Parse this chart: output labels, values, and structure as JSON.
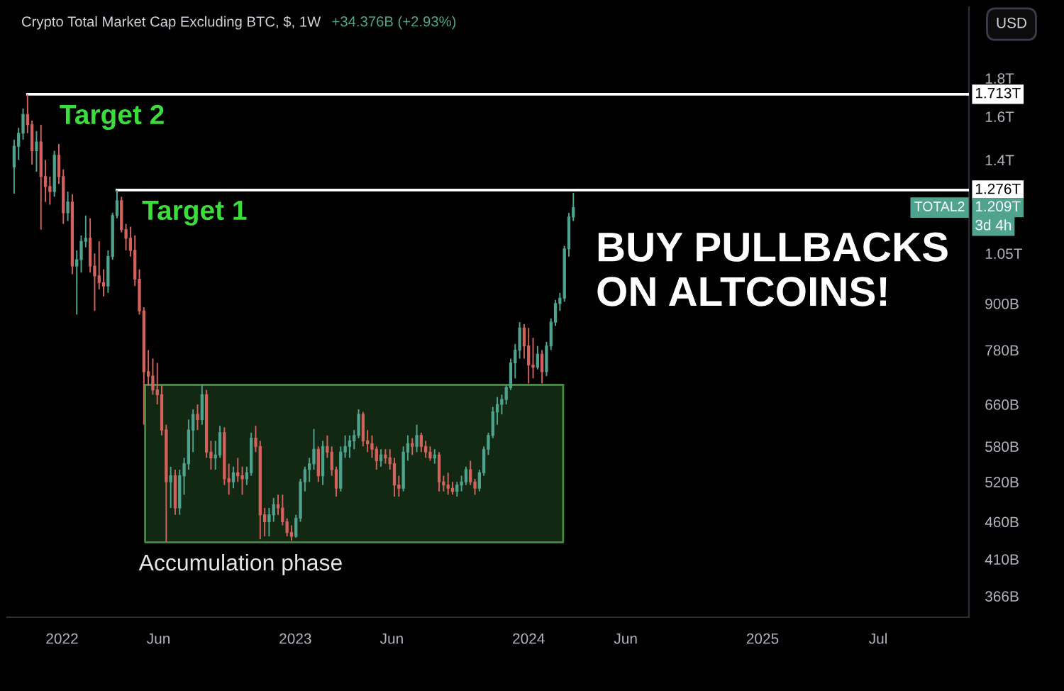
{
  "chart_data": {
    "type": "candlestick",
    "title": "Crypto Total Market Cap Excluding BTC, $, 1W",
    "subtitle": "+34.376B (+2.93%)",
    "log": true,
    "xlim": [
      "2021-10-07",
      "2025-11-20"
    ],
    "xticks": [
      {
        "value": "2022-01-01",
        "label": "2022"
      },
      {
        "value": "2022-06-01",
        "label": "Jun"
      },
      {
        "value": "2023-01-01",
        "label": "2023"
      },
      {
        "value": "2023-06-01",
        "label": "Jun"
      },
      {
        "value": "2024-01-01",
        "label": "2024"
      },
      {
        "value": "2024-06-01",
        "label": "Jun"
      },
      {
        "value": "2025-01-01",
        "label": "2025"
      },
      {
        "value": "2025-07-01",
        "label": "Jul"
      }
    ],
    "ylim": [
      343000000000.0,
      2240000000000.0
    ],
    "yticks": [
      {
        "value": 366000000000.0,
        "label": "366B"
      },
      {
        "value": 410000000000.0,
        "label": "410B"
      },
      {
        "value": 460000000000.0,
        "label": "460B"
      },
      {
        "value": 520000000000.0,
        "label": "520B"
      },
      {
        "value": 580000000000.0,
        "label": "580B"
      },
      {
        "value": 660000000000.0,
        "label": "660B"
      },
      {
        "value": 780000000000.0,
        "label": "780B"
      },
      {
        "value": 900000000000.0,
        "label": "900B"
      },
      {
        "value": 1050000000000.0,
        "label": "1.05T"
      },
      {
        "value": 1400000000000.0,
        "label": "1.4T"
      },
      {
        "value": 1600000000000.0,
        "label": "1.6T"
      },
      {
        "value": 1800000000000.0,
        "label": "1.8T"
      }
    ],
    "series": [
      {
        "type": "line",
        "x": [
          "2022-05-11",
          "2024-02-24"
        ],
        "values": [
          701000000000.0,
          701000000000.0
        ],
        "lower": [
          432000000000.0,
          432000000000.0
        ],
        "upper": [
          701000000000.0,
          701000000000.0
        ],
        "color": "#3f8f3f"
      },
      {
        "type": "line",
        "x": [
          "2021-11-08",
          "2025-11-20"
        ],
        "values": [
          1713000000000.0,
          1713000000000.0
        ],
        "color": "#ffffff",
        "value_labels": [
          null,
          "1.713T"
        ]
      },
      {
        "type": "line",
        "x": [
          "2022-03-28",
          "2025-11-20"
        ],
        "values": [
          1276000000000.0,
          1276000000000.0
        ],
        "color": "#ffffff",
        "value_labels": [
          null,
          "1.276T"
        ]
      },
      {
        "name": "TOTAL2",
        "x": [
          "2021-10-18",
          "2021-10-25",
          "2021-11-01",
          "2021-11-08",
          "2021-11-15",
          "2021-11-22",
          "2021-11-29",
          "2021-12-06",
          "2021-12-13",
          "2021-12-20",
          "2021-12-27",
          "2022-01-03",
          "2022-01-10",
          "2022-01-17",
          "2022-01-24",
          "2022-01-31",
          "2022-02-07",
          "2022-02-14",
          "2022-02-21",
          "2022-02-28",
          "2022-03-07",
          "2022-03-14",
          "2022-03-21",
          "2022-03-28",
          "2022-04-04",
          "2022-04-11",
          "2022-04-18",
          "2022-04-25",
          "2022-05-02",
          "2022-05-09",
          "2022-05-16",
          "2022-05-23",
          "2022-05-30",
          "2022-06-06",
          "2022-06-13",
          "2022-06-20",
          "2022-06-27",
          "2022-07-04",
          "2022-07-11",
          "2022-07-18",
          "2022-07-25",
          "2022-08-01",
          "2022-08-08",
          "2022-08-15",
          "2022-08-22",
          "2022-08-29",
          "2022-09-05",
          "2022-09-12",
          "2022-09-19",
          "2022-09-26",
          "2022-10-03",
          "2022-10-10",
          "2022-10-17",
          "2022-10-24",
          "2022-10-31",
          "2022-11-07",
          "2022-11-14",
          "2022-11-21",
          "2022-11-28",
          "2022-12-05",
          "2022-12-12",
          "2022-12-19",
          "2022-12-26",
          "2023-01-02",
          "2023-01-09",
          "2023-01-16",
          "2023-01-23",
          "2023-01-30",
          "2023-02-06",
          "2023-02-13",
          "2023-02-20",
          "2023-02-27",
          "2023-03-06",
          "2023-03-13",
          "2023-03-20",
          "2023-03-27",
          "2023-04-03",
          "2023-04-10",
          "2023-04-17",
          "2023-04-24",
          "2023-05-01",
          "2023-05-08",
          "2023-05-15",
          "2023-05-22",
          "2023-05-29",
          "2023-06-05",
          "2023-06-12",
          "2023-06-19",
          "2023-06-26",
          "2023-07-03",
          "2023-07-10",
          "2023-07-17",
          "2023-07-24",
          "2023-07-31",
          "2023-08-07",
          "2023-08-14",
          "2023-08-21",
          "2023-08-28",
          "2023-09-04",
          "2023-09-11",
          "2023-09-18",
          "2023-09-25",
          "2023-10-02",
          "2023-10-09",
          "2023-10-16",
          "2023-10-23",
          "2023-10-30",
          "2023-11-06",
          "2023-11-13",
          "2023-11-20",
          "2023-11-27",
          "2023-12-04",
          "2023-12-11",
          "2023-12-18",
          "2023-12-25",
          "2024-01-01",
          "2024-01-08",
          "2024-01-15",
          "2024-01-22",
          "2024-01-29",
          "2024-02-05",
          "2024-02-12",
          "2024-02-19",
          "2024-02-26",
          "2024-03-04",
          "2024-03-11"
        ],
        "ohlc": [
          [
            1370000000000.0,
            1490000000000.0,
            1262000000000.0,
            1460000000000.0
          ],
          [
            1460000000000.0,
            1545000000000.0,
            1400000000000.0,
            1520000000000.0
          ],
          [
            1520000000000.0,
            1640000000000.0,
            1490000000000.0,
            1610000000000.0
          ],
          [
            1610000000000.0,
            1713000000000.0,
            1520000000000.0,
            1560000000000.0
          ],
          [
            1560000000000.0,
            1580000000000.0,
            1380000000000.0,
            1440000000000.0
          ],
          [
            1440000000000.0,
            1530000000000.0,
            1350000000000.0,
            1480000000000.0
          ],
          [
            1480000000000.0,
            1560000000000.0,
            1130000000000.0,
            1330000000000.0
          ],
          [
            1330000000000.0,
            1400000000000.0,
            1230000000000.0,
            1290000000000.0
          ],
          [
            1290000000000.0,
            1330000000000.0,
            1220000000000.0,
            1270000000000.0
          ],
          [
            1270000000000.0,
            1440000000000.0,
            1250000000000.0,
            1420000000000.0
          ],
          [
            1420000000000.0,
            1470000000000.0,
            1300000000000.0,
            1330000000000.0
          ],
          [
            1330000000000.0,
            1360000000000.0,
            1150000000000.0,
            1190000000000.0
          ],
          [
            1190000000000.0,
            1270000000000.0,
            1160000000000.0,
            1230000000000.0
          ],
          [
            1230000000000.0,
            1260000000000.0,
            985000000000.0,
            1010000000000.0
          ],
          [
            1010000000000.0,
            1060000000000.0,
            870000000000.0,
            1030000000000.0
          ],
          [
            1030000000000.0,
            1110000000000.0,
            990000000000.0,
            1090000000000.0
          ],
          [
            1090000000000.0,
            1180000000000.0,
            1070000000000.0,
            1100000000000.0
          ],
          [
            1100000000000.0,
            1170000000000.0,
            990000000000.0,
            1010000000000.0
          ],
          [
            1010000000000.0,
            1050000000000.0,
            880000000000.0,
            980000000000.0
          ],
          [
            980000000000.0,
            1090000000000.0,
            940000000000.0,
            960000000000.0
          ],
          [
            960000000000.0,
            1000000000000.0,
            920000000000.0,
            950000000000.0
          ],
          [
            950000000000.0,
            1060000000000.0,
            930000000000.0,
            1040000000000.0
          ],
          [
            1040000000000.0,
            1190000000000.0,
            1030000000000.0,
            1180000000000.0
          ],
          [
            1180000000000.0,
            1276000000000.0,
            1170000000000.0,
            1235000000000.0
          ],
          [
            1235000000000.0,
            1250000000000.0,
            1120000000000.0,
            1130000000000.0
          ],
          [
            1130000000000.0,
            1150000000000.0,
            1060000000000.0,
            1100000000000.0
          ],
          [
            1100000000000.0,
            1140000000000.0,
            1040000000000.0,
            1060000000000.0
          ],
          [
            1060000000000.0,
            1110000000000.0,
            950000000000.0,
            970000000000.0
          ],
          [
            970000000000.0,
            1000000000000.0,
            870000000000.0,
            880000000000.0
          ],
          [
            880000000000.0,
            890000000000.0,
            620000000000.0,
            730000000000.0
          ],
          [
            730000000000.0,
            780000000000.0,
            700000000000.0,
            720000000000.0
          ],
          [
            720000000000.0,
            760000000000.0,
            680000000000.0,
            690000000000.0
          ],
          [
            690000000000.0,
            750000000000.0,
            660000000000.0,
            680000000000.0
          ],
          [
            680000000000.0,
            700000000000.0,
            600000000000.0,
            610000000000.0
          ],
          [
            610000000000.0,
            620000000000.0,
            432000000000.0,
            520000000000.0
          ],
          [
            520000000000.0,
            545000000000.0,
            480000000000.0,
            530000000000.0
          ],
          [
            530000000000.0,
            540000000000.0,
            470000000000.0,
            480000000000.0
          ],
          [
            480000000000.0,
            540000000000.0,
            470000000000.0,
            530000000000.0
          ],
          [
            530000000000.0,
            560000000000.0,
            500000000000.0,
            550000000000.0
          ],
          [
            550000000000.0,
            630000000000.0,
            540000000000.0,
            610000000000.0
          ],
          [
            610000000000.0,
            650000000000.0,
            570000000000.0,
            640000000000.0
          ],
          [
            640000000000.0,
            660000000000.0,
            610000000000.0,
            630000000000.0
          ],
          [
            630000000000.0,
            701000000000.0,
            620000000000.0,
            680000000000.0
          ],
          [
            680000000000.0,
            690000000000.0,
            560000000000.0,
            570000000000.0
          ],
          [
            570000000000.0,
            590000000000.0,
            540000000000.0,
            560000000000.0
          ],
          [
            560000000000.0,
            590000000000.0,
            540000000000.0,
            565000000000.0
          ],
          [
            565000000000.0,
            618000000000.0,
            560000000000.0,
            605000000000.0
          ],
          [
            605000000000.0,
            615000000000.0,
            515000000000.0,
            525000000000.0
          ],
          [
            525000000000.0,
            550000000000.0,
            500000000000.0,
            520000000000.0
          ],
          [
            520000000000.0,
            545000000000.0,
            510000000000.0,
            535000000000.0
          ],
          [
            535000000000.0,
            560000000000.0,
            520000000000.0,
            530000000000.0
          ],
          [
            530000000000.0,
            545000000000.0,
            500000000000.0,
            525000000000.0
          ],
          [
            525000000000.0,
            545000000000.0,
            515000000000.0,
            535000000000.0
          ],
          [
            535000000000.0,
            605000000000.0,
            530000000000.0,
            595000000000.0
          ],
          [
            595000000000.0,
            618000000000.0,
            570000000000.0,
            580000000000.0
          ],
          [
            580000000000.0,
            590000000000.0,
            436000000000.0,
            470000000000.0
          ],
          [
            470000000000.0,
            480000000000.0,
            440000000000.0,
            460000000000.0
          ],
          [
            460000000000.0,
            480000000000.0,
            440000000000.0,
            470000000000.0
          ],
          [
            470000000000.0,
            495000000000.0,
            460000000000.0,
            485000000000.0
          ],
          [
            485000000000.0,
            500000000000.0,
            470000000000.0,
            480000000000.0
          ],
          [
            480000000000.0,
            500000000000.0,
            455000000000.0,
            460000000000.0
          ],
          [
            460000000000.0,
            465000000000.0,
            440000000000.0,
            445000000000.0
          ],
          [
            445000000000.0,
            455000000000.0,
            434000000000.0,
            440000000000.0
          ],
          [
            440000000000.0,
            470000000000.0,
            438000000000.0,
            465000000000.0
          ],
          [
            465000000000.0,
            525000000000.0,
            460000000000.0,
            520000000000.0
          ],
          [
            520000000000.0,
            545000000000.0,
            505000000000.0,
            540000000000.0
          ],
          [
            540000000000.0,
            560000000000.0,
            520000000000.0,
            550000000000.0
          ],
          [
            550000000000.0,
            612000000000.0,
            540000000000.0,
            575000000000.0
          ],
          [
            575000000000.0,
            580000000000.0,
            520000000000.0,
            530000000000.0
          ],
          [
            530000000000.0,
            590000000000.0,
            515000000000.0,
            580000000000.0
          ],
          [
            580000000000.0,
            600000000000.0,
            560000000000.0,
            570000000000.0
          ],
          [
            570000000000.0,
            580000000000.0,
            530000000000.0,
            540000000000.0
          ],
          [
            540000000000.0,
            545000000000.0,
            497000000000.0,
            510000000000.0
          ],
          [
            510000000000.0,
            580000000000.0,
            505000000000.0,
            570000000000.0
          ],
          [
            570000000000.0,
            600000000000.0,
            560000000000.0,
            580000000000.0
          ],
          [
            580000000000.0,
            600000000000.0,
            560000000000.0,
            590000000000.0
          ],
          [
            590000000000.0,
            610000000000.0,
            575000000000.0,
            600000000000.0
          ],
          [
            600000000000.0,
            650000000000.0,
            595000000000.0,
            640000000000.0
          ],
          [
            640000000000.0,
            645000000000.0,
            580000000000.0,
            590000000000.0
          ],
          [
            590000000000.0,
            610000000000.0,
            570000000000.0,
            585000000000.0
          ],
          [
            585000000000.0,
            600000000000.0,
            560000000000.0,
            575000000000.0
          ],
          [
            575000000000.0,
            580000000000.0,
            540000000000.0,
            555000000000.0
          ],
          [
            555000000000.0,
            575000000000.0,
            545000000000.0,
            565000000000.0
          ],
          [
            565000000000.0,
            575000000000.0,
            550000000000.0,
            560000000000.0
          ],
          [
            560000000000.0,
            575000000000.0,
            540000000000.0,
            550000000000.0
          ],
          [
            550000000000.0,
            560000000000.0,
            497000000000.0,
            515000000000.0
          ],
          [
            515000000000.0,
            530000000000.0,
            497000000000.0,
            510000000000.0
          ],
          [
            510000000000.0,
            580000000000.0,
            505000000000.0,
            570000000000.0
          ],
          [
            570000000000.0,
            600000000000.0,
            555000000000.0,
            585000000000.0
          ],
          [
            585000000000.0,
            595000000000.0,
            565000000000.0,
            580000000000.0
          ],
          [
            580000000000.0,
            620000000000.0,
            570000000000.0,
            600000000000.0
          ],
          [
            600000000000.0,
            605000000000.0,
            570000000000.0,
            580000000000.0
          ],
          [
            580000000000.0,
            590000000000.0,
            560000000000.0,
            570000000000.0
          ],
          [
            570000000000.0,
            580000000000.0,
            555000000000.0,
            560000000000.0
          ],
          [
            560000000000.0,
            575000000000.0,
            550000000000.0,
            565000000000.0
          ],
          [
            565000000000.0,
            570000000000.0,
            505000000000.0,
            520000000000.0
          ],
          [
            520000000000.0,
            530000000000.0,
            505000000000.0,
            515000000000.0
          ],
          [
            515000000000.0,
            535000000000.0,
            500000000000.0,
            510000000000.0
          ],
          [
            510000000000.0,
            520000000000.0,
            500000000000.0,
            505000000000.0
          ],
          [
            505000000000.0,
            520000000000.0,
            497000000000.0,
            515000000000.0
          ],
          [
            515000000000.0,
            530000000000.0,
            505000000000.0,
            520000000000.0
          ],
          [
            520000000000.0,
            545000000000.0,
            515000000000.0,
            540000000000.0
          ],
          [
            540000000000.0,
            555000000000.0,
            515000000000.0,
            520000000000.0
          ],
          [
            520000000000.0,
            525000000000.0,
            500000000000.0,
            510000000000.0
          ],
          [
            510000000000.0,
            540000000000.0,
            505000000000.0,
            535000000000.0
          ],
          [
            535000000000.0,
            580000000000.0,
            530000000000.0,
            575000000000.0
          ],
          [
            575000000000.0,
            605000000000.0,
            565000000000.0,
            600000000000.0
          ],
          [
            600000000000.0,
            655000000000.0,
            595000000000.0,
            645000000000.0
          ],
          [
            645000000000.0,
            675000000000.0,
            620000000000.0,
            660000000000.0
          ],
          [
            660000000000.0,
            680000000000.0,
            640000000000.0,
            670000000000.0
          ],
          [
            670000000000.0,
            700000000000.0,
            660000000000.0,
            695000000000.0
          ],
          [
            695000000000.0,
            760000000000.0,
            690000000000.0,
            750000000000.0
          ],
          [
            750000000000.0,
            795000000000.0,
            715000000000.0,
            780000000000.0
          ],
          [
            780000000000.0,
            850000000000.0,
            760000000000.0,
            835000000000.0
          ],
          [
            835000000000.0,
            845000000000.0,
            760000000000.0,
            790000000000.0
          ],
          [
            790000000000.0,
            835000000000.0,
            704000000000.0,
            745000000000.0
          ],
          [
            745000000000.0,
            810000000000.0,
            715000000000.0,
            740000000000.0
          ],
          [
            740000000000.0,
            790000000000.0,
            735000000000.0,
            770000000000.0
          ],
          [
            770000000000.0,
            780000000000.0,
            704000000000.0,
            730000000000.0
          ],
          [
            730000000000.0,
            800000000000.0,
            720000000000.0,
            790000000000.0
          ],
          [
            790000000000.0,
            860000000000.0,
            780000000000.0,
            850000000000.0
          ],
          [
            850000000000.0,
            910000000000.0,
            840000000000.0,
            900000000000.0
          ],
          [
            900000000000.0,
            930000000000.0,
            880000000000.0,
            915000000000.0
          ],
          [
            915000000000.0,
            1075000000000.0,
            905000000000.0,
            1065000000000.0
          ],
          [
            1065000000000.0,
            1190000000000.0,
            1040000000000.0,
            1175000000000.0
          ],
          [
            1174624000000.0,
            1265000000000.0,
            1160000000000.0,
            1209000000000.0
          ]
        ],
        "colors": [
          "#4fa38f",
          "#4fa38f",
          "#4fa38f",
          "#d4625d",
          "#d4625d",
          "#4fa38f",
          "#d4625d",
          "#d4625d",
          "#d4625d",
          "#4fa38f",
          "#d4625d",
          "#d4625d",
          "#4fa38f",
          "#d4625d",
          "#4fa38f",
          "#4fa38f",
          "#4fa38f",
          "#d4625d",
          "#d4625d",
          "#d4625d",
          "#d4625d",
          "#4fa38f",
          "#4fa38f",
          "#4fa38f",
          "#d4625d",
          "#d4625d",
          "#d4625d",
          "#d4625d",
          "#d4625d",
          "#d4625d",
          "#d4625d",
          "#d4625d",
          "#d4625d",
          "#d4625d",
          "#d4625d",
          "#4fa38f",
          "#d4625d",
          "#4fa38f",
          "#4fa38f",
          "#4fa38f",
          "#4fa38f",
          "#d4625d",
          "#4fa38f",
          "#d4625d",
          "#d4625d",
          "#4fa38f",
          "#4fa38f",
          "#d4625d",
          "#d4625d",
          "#4fa38f",
          "#d4625d",
          "#d4625d",
          "#4fa38f",
          "#4fa38f",
          "#d4625d",
          "#d4625d",
          "#d4625d",
          "#4fa38f",
          "#4fa38f",
          "#d4625d",
          "#d4625d",
          "#d4625d",
          "#d4625d",
          "#4fa38f",
          "#4fa38f",
          "#4fa38f",
          "#4fa38f",
          "#4fa38f",
          "#d4625d",
          "#4fa38f",
          "#d4625d",
          "#d4625d",
          "#d4625d",
          "#4fa38f",
          "#4fa38f",
          "#4fa38f",
          "#4fa38f",
          "#4fa38f",
          "#d4625d",
          "#d4625d",
          "#d4625d",
          "#d4625d",
          "#4fa38f",
          "#d4625d",
          "#d4625d",
          "#d4625d",
          "#d4625d",
          "#4fa38f",
          "#4fa38f",
          "#d4625d",
          "#4fa38f",
          "#d4625d",
          "#d4625d",
          "#d4625d",
          "#4fa38f",
          "#d4625d",
          "#d4625d",
          "#d4625d",
          "#d4625d",
          "#4fa38f",
          "#4fa38f",
          "#4fa38f",
          "#d4625d",
          "#d4625d",
          "#4fa38f",
          "#4fa38f",
          "#4fa38f",
          "#4fa38f",
          "#4fa38f",
          "#4fa38f",
          "#4fa38f",
          "#4fa38f",
          "#4fa38f",
          "#4fa38f",
          "#d4625d",
          "#d4625d",
          "#d4625d",
          "#4fa38f",
          "#d4625d",
          "#4fa38f",
          "#4fa38f",
          "#4fa38f",
          "#4fa38f",
          "#4fa38f",
          "#4fa38f",
          "#4fa38f"
        ],
        "value_labels": [
          null,
          null,
          null,
          null,
          null,
          null,
          null,
          null,
          null,
          null,
          null,
          null,
          null,
          null,
          null,
          null,
          null,
          null,
          null,
          null,
          null,
          null,
          null,
          null,
          null,
          null,
          null,
          null,
          null,
          null,
          null,
          null,
          null,
          null,
          null,
          null,
          null,
          null,
          null,
          null,
          null,
          null,
          null,
          null,
          null,
          null,
          null,
          null,
          null,
          null,
          null,
          null,
          null,
          null,
          null,
          null,
          null,
          null,
          null,
          null,
          null,
          null,
          null,
          null,
          null,
          null,
          null,
          null,
          null,
          null,
          null,
          null,
          null,
          null,
          null,
          null,
          null,
          null,
          null,
          null,
          null,
          null,
          null,
          null,
          null,
          null,
          null,
          null,
          null,
          null,
          null,
          null,
          null,
          null,
          null,
          null,
          null,
          null,
          null,
          null,
          null,
          null,
          null,
          null,
          null,
          null,
          null,
          null,
          null,
          null,
          null,
          null,
          null,
          null,
          null,
          null,
          null,
          null,
          null,
          null,
          null,
          null,
          null,
          null,
          null,
          "1.209T"
        ]
      }
    ],
    "annotations": [
      {
        "text": "Target 2",
        "x": "2021-12-28",
        "y": 1713000000000.0
      },
      {
        "text": "Target 1",
        "x": "2022-05-06",
        "y": 1276000000000.0
      },
      {
        "text": "Accumulation phase",
        "x": "2022-05-01",
        "y": 432000000000.0
      },
      "BUY PULLBACKS\nON ALTCOINS!",
      "USD",
      "3d 4h"
    ]
  }
}
